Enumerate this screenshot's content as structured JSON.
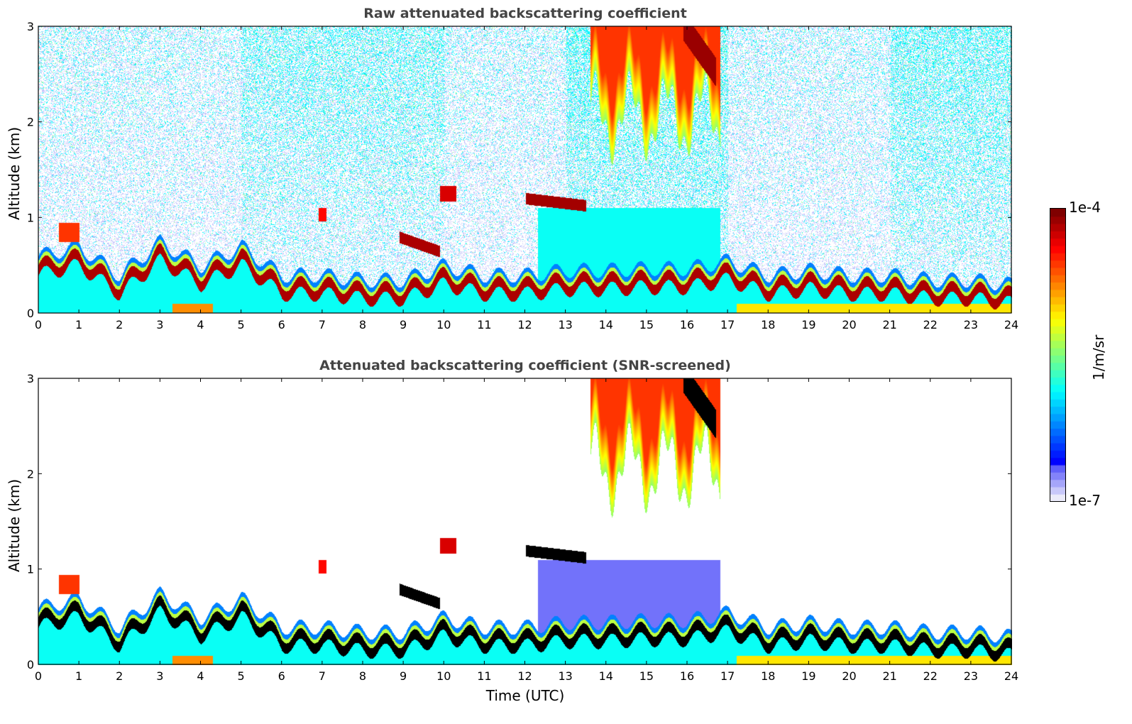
{
  "chart_data": [
    {
      "type": "heatmap",
      "title": "Raw attenuated backscattering coefficient",
      "xlabel": "",
      "ylabel": "Altitude (km)",
      "xlim": [
        0,
        24
      ],
      "ylim": [
        0,
        3
      ],
      "xticks": [
        "0",
        "1",
        "2",
        "3",
        "4",
        "5",
        "6",
        "7",
        "8",
        "9",
        "10",
        "11",
        "12",
        "13",
        "14",
        "15",
        "16",
        "17",
        "18",
        "19",
        "20",
        "21",
        "22",
        "23",
        "24"
      ],
      "yticks": [
        "0",
        "1",
        "2",
        "3"
      ],
      "screened": false
    },
    {
      "type": "heatmap",
      "title": "Attenuated backscattering coefficient (SNR-screened)",
      "xlabel": "Time (UTC)",
      "ylabel": "Altitude (km)",
      "xlim": [
        0,
        24
      ],
      "ylim": [
        0,
        3
      ],
      "xticks": [
        "0",
        "1",
        "2",
        "3",
        "4",
        "5",
        "6",
        "7",
        "8",
        "9",
        "10",
        "11",
        "12",
        "13",
        "14",
        "15",
        "16",
        "17",
        "18",
        "19",
        "20",
        "21",
        "22",
        "23",
        "24"
      ],
      "yticks": [
        "0",
        "1",
        "2",
        "3"
      ],
      "screened": true
    }
  ],
  "colorbar": {
    "label": "1/m/sr",
    "max_label": "1e-4",
    "min_label": "1e-7",
    "colormap": "jet",
    "range": [
      1e-07,
      0.0001
    ]
  },
  "layer_top_km_by_hour": [
    0.55,
    0.65,
    0.35,
    0.7,
    0.45,
    0.65,
    0.35,
    0.35,
    0.3,
    0.3,
    0.45,
    0.35,
    0.35,
    0.4,
    0.4,
    0.42,
    0.42,
    0.5,
    0.35,
    0.4,
    0.35,
    0.35,
    0.3,
    0.3,
    0.25
  ]
}
